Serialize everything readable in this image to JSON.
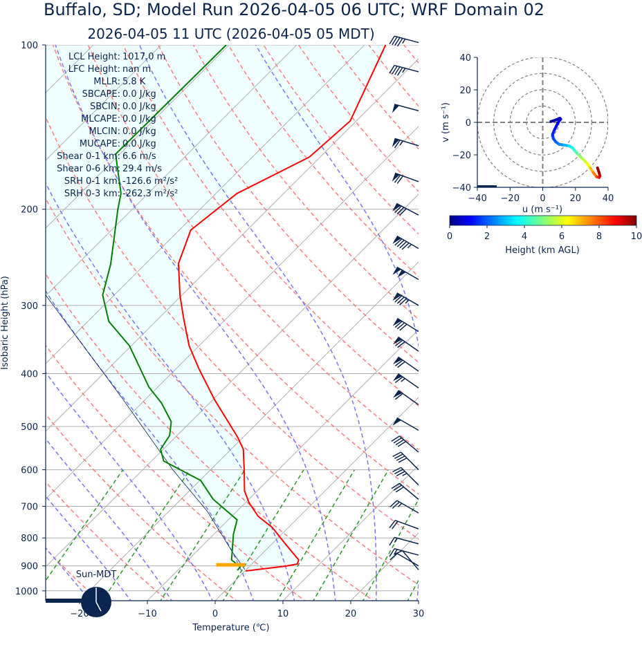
{
  "title": "Buffalo, SD; Model Run 2026-04-05 06 UTC; WRF Domain 02",
  "subtitle": "2026-04-05 11 UTC  (2026-04-05 05 MDT)",
  "stats": [
    {
      "label": "LCL Height:",
      "value": "1017.0 m"
    },
    {
      "label": "LFC Height:",
      "value": "nan m"
    },
    {
      "label": "MLLR:",
      "value": "5.8 K"
    },
    {
      "label": "SBCAPE:",
      "value": "0.0 J/kg"
    },
    {
      "label": "SBCIN:",
      "value": "0.0 J/kg"
    },
    {
      "label": "MLCAPE:",
      "value": "0.0 J/kg"
    },
    {
      "label": "MLCIN:",
      "value": "0.0 J/kg"
    },
    {
      "label": "MUCAPE:",
      "value": "0.0 J/kg"
    },
    {
      "label": "Shear 0-1 km:",
      "value": "6.6 m/s"
    },
    {
      "label": "Shear 0-6 km:",
      "value": "29.4 m/s"
    },
    {
      "label": "SRH 0-1 km:",
      "value": "-126.6 m²/s²"
    },
    {
      "label": "SRH 0-3 km:",
      "value": "-262.3 m²/s²"
    }
  ],
  "clock_label": "Sun-MDT",
  "colors": {
    "text": "#0a2550",
    "temperature": "#ff0000",
    "dewpoint": "#008000",
    "parcel": "#0a2550",
    "cin_fill": "#f0ffff",
    "lcl": "#ffa500"
  },
  "chart_data": [
    {
      "type": "line",
      "name": "skewt",
      "xlabel": "Temperature (℃)",
      "ylabel": "Isobaric Height (hPa)",
      "xlim": [
        -25,
        30
      ],
      "ylim": [
        1050,
        100
      ],
      "xticks": [
        -20,
        -10,
        0,
        10,
        20,
        30
      ],
      "xtick_labels": [
        "−20",
        "−10",
        "0",
        "10",
        "20",
        "30"
      ],
      "yticks": [
        100,
        200,
        300,
        400,
        500,
        600,
        700,
        800,
        900,
        1000
      ],
      "skew_deg": 45,
      "grid": true,
      "series": [
        {
          "name": "Temperature",
          "p": [
            100,
            137.8,
            160.4,
            187.1,
            218.4,
            251.3,
            287.3,
            316.3,
            355.5,
            391.4,
            446.2,
            522.3,
            550.4,
            600.7,
            655.7,
            688.9,
            730.3,
            765.2,
            820.7,
            877.6,
            893.1,
            901.0,
            919.6
          ],
          "T": [
            -56.9,
            -50.9,
            -51.6,
            -56.9,
            -58.3,
            -55.2,
            -50.3,
            -46.4,
            -41.5,
            -36.7,
            -29.8,
            -20.9,
            -18.2,
            -15.0,
            -11.9,
            -9.5,
            -6.1,
            -2.4,
            2.0,
            6.3,
            6.7,
            5.3,
            0.1
          ]
        },
        {
          "name": "Dewpoint",
          "p": [
            100,
            158.5,
            187.1,
            200.2,
            252.0,
            287.3,
            321.0,
            355.5,
            423.4,
            452.8,
            489.9,
            519.3,
            550.4,
            578.4,
            627.6,
            679.1,
            741.1,
            787.9,
            877.6,
            903.6,
            916.9
          ],
          "T": [
            -80.4,
            -80.6,
            -74.0,
            -72.1,
            -65.1,
            -61.7,
            -56.9,
            -50.3,
            -41.3,
            -37.1,
            -32.9,
            -31.1,
            -30.4,
            -28.2,
            -19.9,
            -15.3,
            -8.7,
            -7.1,
            -3.6,
            -1.3,
            -1.2
          ]
        },
        {
          "name": "Parcel",
          "p": [
            914.2,
            852.4,
            715.6,
            600.7,
            448.9,
            399.4,
            287.3
          ],
          "T": [
            -0.2,
            -4.4,
            -14.3,
            -25.5,
            -42.9,
            -50.0,
            -70.1
          ]
        }
      ],
      "lcl": {
        "p": 896,
        "T": -3.0
      },
      "wind_barbs_kt": [
        {
          "p": 99,
          "speed": 45,
          "dir": 285
        },
        {
          "p": 112,
          "speed": 45,
          "dir": 285
        },
        {
          "p": 132,
          "speed": 50,
          "dir": 285
        },
        {
          "p": 153,
          "speed": 65,
          "dir": 287
        },
        {
          "p": 178,
          "speed": 70,
          "dir": 290
        },
        {
          "p": 205,
          "speed": 80,
          "dir": 298
        },
        {
          "p": 236,
          "speed": 95,
          "dir": 300
        },
        {
          "p": 269,
          "speed": 100,
          "dir": 300
        },
        {
          "p": 300,
          "speed": 85,
          "dir": 300
        },
        {
          "p": 335,
          "speed": 80,
          "dir": 302
        },
        {
          "p": 364,
          "speed": 70,
          "dir": 305
        },
        {
          "p": 396,
          "speed": 70,
          "dir": 305
        },
        {
          "p": 425,
          "speed": 65,
          "dir": 305
        },
        {
          "p": 456,
          "speed": 60,
          "dir": 305
        },
        {
          "p": 508,
          "speed": 50,
          "dir": 300
        },
        {
          "p": 557,
          "speed": 40,
          "dir": 310
        },
        {
          "p": 600,
          "speed": 40,
          "dir": 315
        },
        {
          "p": 640,
          "speed": 35,
          "dir": 315
        },
        {
          "p": 680,
          "speed": 30,
          "dir": 310
        },
        {
          "p": 720,
          "speed": 25,
          "dir": 300
        },
        {
          "p": 770,
          "speed": 20,
          "dir": 290
        },
        {
          "p": 820,
          "speed": 15,
          "dir": 285
        },
        {
          "p": 860,
          "speed": 15,
          "dir": 285
        },
        {
          "p": 900,
          "speed": 10,
          "dir": 300
        },
        {
          "p": 915,
          "speed": 10,
          "dir": 320
        }
      ]
    },
    {
      "type": "line",
      "name": "hodograph",
      "xlabel": "u (m s⁻¹)",
      "ylabel": "v (m s⁻¹)",
      "xlim": [
        -40,
        40
      ],
      "ylim": [
        -40,
        40
      ],
      "xticks": [
        -40,
        -20,
        0,
        20,
        40
      ],
      "xtick_labels": [
        "−40",
        "−20",
        "0",
        "20",
        "40"
      ],
      "yticks": [
        40,
        20,
        0,
        -20,
        -40
      ],
      "ytick_labels": [
        "40",
        "20",
        "0",
        "−20",
        "−40"
      ],
      "rings": [
        10,
        20,
        30,
        40
      ],
      "u": [
        5,
        8,
        10.5,
        11,
        9.5,
        8,
        7,
        6,
        6.5,
        8,
        10,
        13,
        16,
        18,
        20,
        22,
        24.5,
        27,
        29,
        31,
        33,
        34.5,
        35,
        34.5,
        33.5
      ],
      "v": [
        0.5,
        1.5,
        2.5,
        2,
        0,
        -3,
        -5,
        -7.5,
        -10,
        -12,
        -13.5,
        -14,
        -14.5,
        -15.5,
        -18,
        -20,
        -22.5,
        -25,
        -28,
        -31,
        -33.5,
        -34,
        -33,
        -31,
        -28
      ],
      "height_km": [
        0,
        0.3,
        0.6,
        0.8,
        1.0,
        1.2,
        1.4,
        1.6,
        1.8,
        2.1,
        2.4,
        2.8,
        3.3,
        3.8,
        4.3,
        4.8,
        5.4,
        6.0,
        6.6,
        7.2,
        7.8,
        8.4,
        9.0,
        9.5,
        10.0
      ],
      "colorbar": {
        "label": "Height (km AGL)",
        "range": [
          0,
          10
        ],
        "ticks": [
          "0",
          "2",
          "4",
          "6",
          "8",
          "10"
        ],
        "colormap": "jet"
      }
    }
  ]
}
